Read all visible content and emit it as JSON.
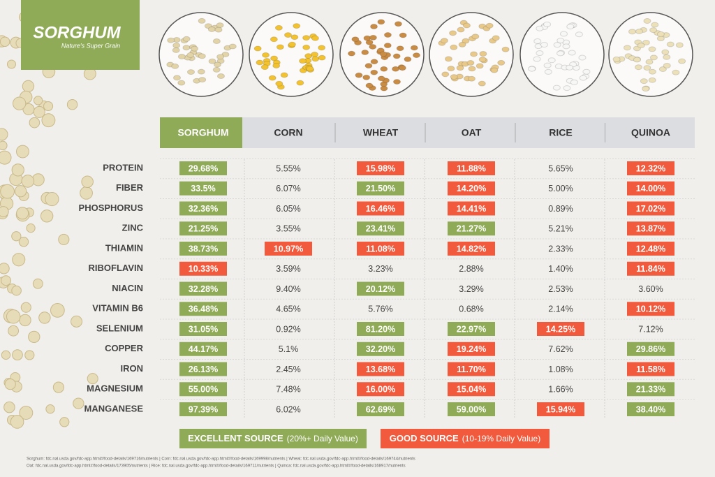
{
  "logo": {
    "title": "SORGHUM",
    "tagline": "Nature's Super Grain"
  },
  "table": {
    "columns": [
      "SORGHUM",
      "CORN",
      "WHEAT",
      "OAT",
      "RICE",
      "QUINOA"
    ],
    "rows": [
      {
        "nutrient": "PROTEIN",
        "cells": [
          "29.68%",
          "5.55%",
          "15.98%",
          "11.88%",
          "5.65%",
          "12.32%"
        ],
        "highlight": [
          0,
          null,
          1,
          1,
          null,
          1
        ]
      },
      {
        "nutrient": "FIBER",
        "cells": [
          "33.5%",
          "6.07%",
          "21.50%",
          "14.20%",
          "5.00%",
          "14.00%"
        ],
        "highlight": [
          0,
          null,
          0,
          1,
          null,
          1
        ]
      },
      {
        "nutrient": "PHOSPHORUS",
        "cells": [
          "32.36%",
          "6.05%",
          "16.46%",
          "14.41%",
          "0.89%",
          "17.02%"
        ],
        "highlight": [
          0,
          null,
          1,
          1,
          null,
          1
        ]
      },
      {
        "nutrient": "ZINC",
        "cells": [
          "21.25%",
          "3.55%",
          "23.41%",
          "21.27%",
          "5.21%",
          "13.87%"
        ],
        "highlight": [
          0,
          null,
          0,
          0,
          null,
          1
        ]
      },
      {
        "nutrient": "THIAMIN",
        "cells": [
          "38.73%",
          "10.97%",
          "11.08%",
          "14.82%",
          "2.33%",
          "12.48%"
        ],
        "highlight": [
          0,
          1,
          1,
          1,
          null,
          1
        ]
      },
      {
        "nutrient": "RIBOFLAVIN",
        "cells": [
          "10.33%",
          "3.59%",
          "3.23%",
          "2.88%",
          "1.40%",
          "11.84%"
        ],
        "highlight": [
          1,
          null,
          null,
          null,
          null,
          1
        ]
      },
      {
        "nutrient": "NIACIN",
        "cells": [
          "32.28%",
          "9.40%",
          "20.12%",
          "3.29%",
          "2.53%",
          "3.60%"
        ],
        "highlight": [
          0,
          null,
          0,
          null,
          null,
          null
        ]
      },
      {
        "nutrient": "VITAMIN B6",
        "cells": [
          "36.48%",
          "4.65%",
          "5.76%",
          "0.68%",
          "2.14%",
          "10.12%"
        ],
        "highlight": [
          0,
          null,
          null,
          null,
          null,
          1
        ]
      },
      {
        "nutrient": "SELENIUM",
        "cells": [
          "31.05%",
          "0.92%",
          "81.20%",
          "22.97%",
          "14.25%",
          "7.12%"
        ],
        "highlight": [
          0,
          null,
          0,
          0,
          1,
          null
        ]
      },
      {
        "nutrient": "COPPER",
        "cells": [
          "44.17%",
          "5.1%",
          "32.20%",
          "19.24%",
          "7.62%",
          "29.86%"
        ],
        "highlight": [
          0,
          null,
          0,
          1,
          null,
          0
        ]
      },
      {
        "nutrient": "IRON",
        "cells": [
          "26.13%",
          "2.45%",
          "13.68%",
          "11.70%",
          "1.08%",
          "11.58%"
        ],
        "highlight": [
          0,
          null,
          1,
          1,
          null,
          1
        ]
      },
      {
        "nutrient": "MAGNESIUM",
        "cells": [
          "55.00%",
          "7.48%",
          "16.00%",
          "15.04%",
          "1.66%",
          "21.33%"
        ],
        "highlight": [
          0,
          null,
          1,
          1,
          null,
          0
        ]
      },
      {
        "nutrient": "MANGANESE",
        "cells": [
          "97.39%",
          "6.02%",
          "62.69%",
          "59.00%",
          "15.94%",
          "38.40%"
        ],
        "highlight": [
          0,
          null,
          0,
          0,
          1,
          0
        ]
      }
    ]
  },
  "legend": [
    {
      "label": "EXCELLENT SOURCE",
      "note": "(20%+ Daily Value)",
      "color": "#8fab57"
    },
    {
      "label": "GOOD SOURCE",
      "note": "(10-19% Daily Value)",
      "color": "#f15a3c"
    }
  ],
  "sources": [
    "Sorghum: fdc.nal.usda.gov/fdc-app.html#/food-details/169716/nutrients | Corn: fdc.nal.usda.gov/fdc-app.html#/food-details/169998/nutrients | Wheat: fdc.nal.usda.gov/fdc-app.html#/food-details/169744/nutrients",
    "Oat: fdc.nal.usda.gov/fdc-app.html#/food-details/173905/nutrients | Rice: fdc.nal.usda.gov/fdc-app.html#/food-details/169711/nutrients | Quinoa: fdc.nal.usda.gov/fdc-app.html#/food-details/168917/nutrients"
  ]
}
